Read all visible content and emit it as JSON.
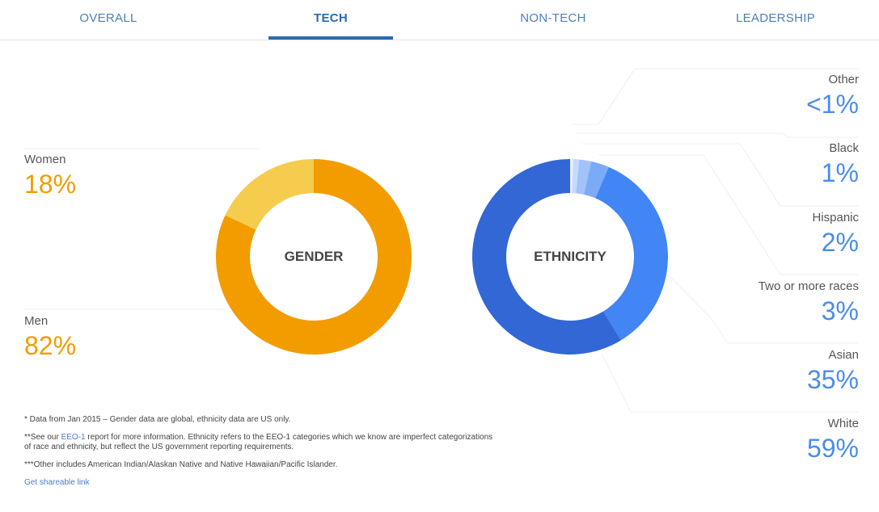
{
  "tabs": [
    "OVERALL",
    "TECH",
    "NON-TECH",
    "LEADERSHIP"
  ],
  "active_tab": "TECH",
  "chart_data": [
    {
      "type": "pie",
      "title": "GENDER",
      "slices": [
        {
          "label": "Men",
          "value": 82,
          "display": "82%",
          "color": "#f29c00"
        },
        {
          "label": "Women",
          "value": 18,
          "display": "18%",
          "color": "#f6cc4f"
        }
      ]
    },
    {
      "type": "pie",
      "title": "ETHNICITY",
      "slices": [
        {
          "label": "Other",
          "value": 0.5,
          "display": "<1%",
          "color": "#e8f0fe"
        },
        {
          "label": "Black",
          "value": 1,
          "display": "1%",
          "color": "#c6dafc"
        },
        {
          "label": "Hispanic",
          "value": 2,
          "display": "2%",
          "color": "#a1c2fa"
        },
        {
          "label": "Two or more races",
          "value": 3,
          "display": "3%",
          "color": "#7baaf7"
        },
        {
          "label": "Asian",
          "value": 35,
          "display": "35%",
          "color": "#4285f4"
        },
        {
          "label": "White",
          "value": 59,
          "display": "59%",
          "color": "#3367d6"
        }
      ]
    }
  ],
  "notes": {
    "n1": "* Data from Jan 2015 – Gender data are global, ethnicity data are US only.",
    "n2_pre": "**See our ",
    "n2_link": "EEO-1",
    "n2_post": " report for more information. Ethnicity refers to the EEO-1 categories which we know are imperfect categorizations of race and ethnicity, but reflect the US government reporting requirements.",
    "n3": "***Other includes American Indian/Alaskan Native and Native Hawaiian/Pacific Islander.",
    "share": "Get shareable link"
  }
}
